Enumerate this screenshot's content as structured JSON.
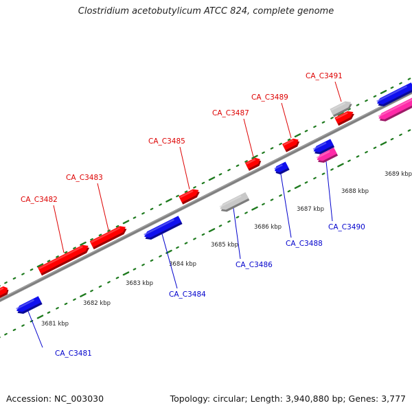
{
  "title": "Clostridium acetobutylicum ATCC 824, complete genome",
  "footer": {
    "accession": "Accession: NC_003030",
    "summary": "Topology: circular; Length: 3,940,880 bp; Genes: 3,777"
  },
  "colors": {
    "backbone": "#7f7f7f",
    "ticks": "#1e7a1e",
    "forward_gene": "#ff0000",
    "reverse_gene": "#1010ee",
    "pseudo_gene": "#c8c8c8",
    "rna_gene": "#ff2aa8",
    "forward_label": "#dd0000",
    "reverse_label": "#0000cc",
    "tick_label": "#222222"
  },
  "scale": {
    "kbp_labels": [
      "3681 kbp",
      "3682 kbp",
      "3683 kbp",
      "3684 kbp",
      "3685 kbp",
      "3686 kbp",
      "3687 kbp",
      "3688 kbp",
      "3689 kbp"
    ]
  },
  "genes": [
    {
      "id": "CA_C3481",
      "strand": "reverse",
      "type": "protein"
    },
    {
      "id": "CA_C3482",
      "strand": "forward",
      "type": "protein"
    },
    {
      "id": "CA_C3483",
      "strand": "forward",
      "type": "protein"
    },
    {
      "id": "CA_C3484",
      "strand": "reverse",
      "type": "protein"
    },
    {
      "id": "CA_C3485",
      "strand": "forward",
      "type": "protein"
    },
    {
      "id": "CA_C3486",
      "strand": "reverse",
      "type": "pseudo"
    },
    {
      "id": "CA_C3487",
      "strand": "forward",
      "type": "protein"
    },
    {
      "id": "CA_C3488",
      "strand": "reverse",
      "type": "protein"
    },
    {
      "id": "CA_C3489",
      "strand": "forward",
      "type": "protein"
    },
    {
      "id": "CA_C3490",
      "strand": "reverse",
      "type": "rna"
    },
    {
      "id": "CA_C3491",
      "strand": "forward",
      "type": "pseudo"
    }
  ]
}
